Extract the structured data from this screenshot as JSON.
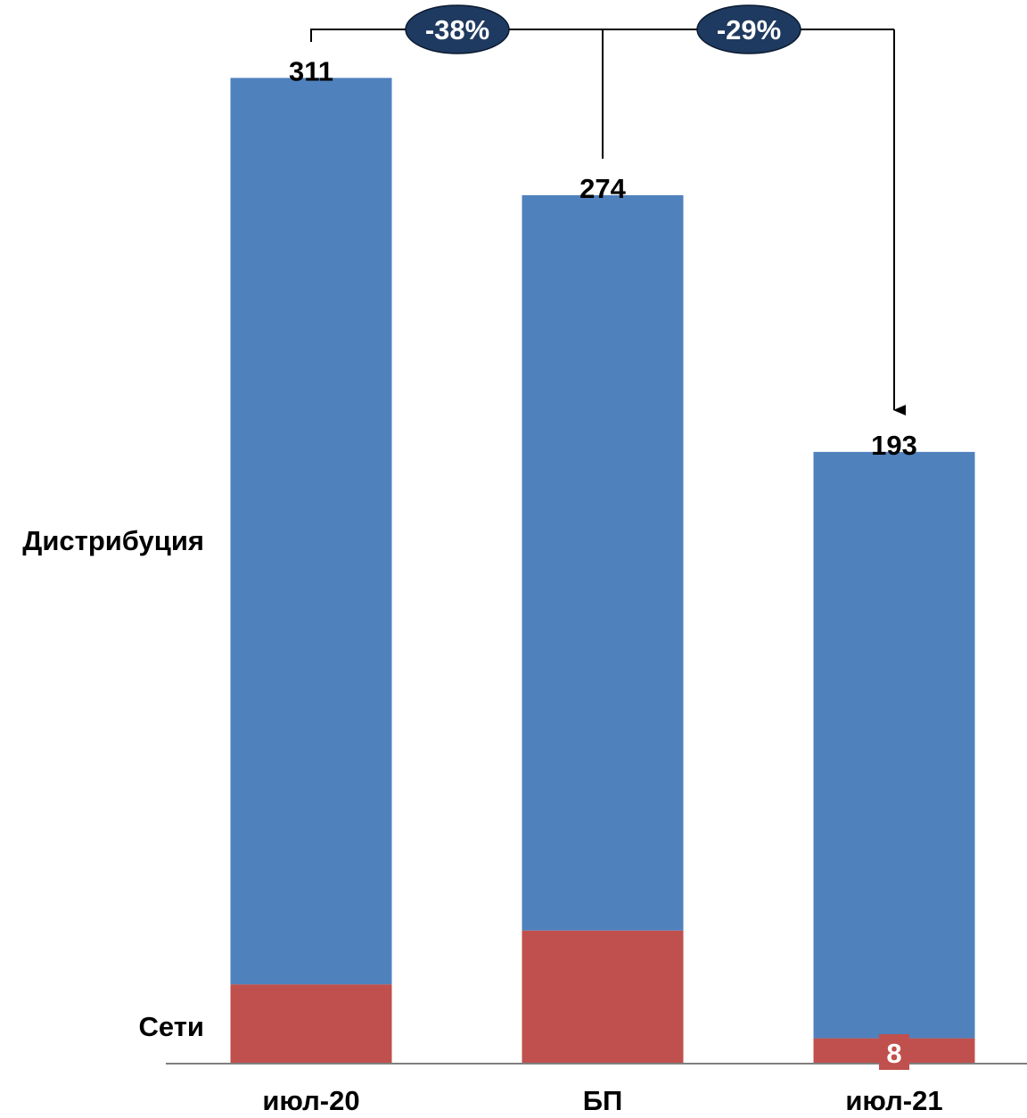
{
  "chart_data": {
    "type": "bar",
    "stacked": true,
    "categories": [
      "июл-20",
      "БП",
      "июл-21"
    ],
    "series": [
      {
        "name": "Сети",
        "values": [
          25,
          42,
          8
        ],
        "color": "#c0504d"
      },
      {
        "name": "Дистрибуция",
        "values": [
          286,
          232,
          185
        ],
        "color": "#4f81bd"
      }
    ],
    "totals": [
      311,
      274,
      193
    ],
    "data_labels": {
      "Сети": [
        "",
        "",
        "8"
      ]
    },
    "annotations": [
      {
        "from": "июл-20",
        "to": "июл-21",
        "text": "-38%"
      },
      {
        "from": "БП",
        "to": "июл-21",
        "text": "-29%"
      }
    ],
    "ylim": [
      0,
      320
    ],
    "grid": false,
    "legend": "inline-left",
    "badge_color": "#1f3a60",
    "axis_color": "#7f7f7f"
  }
}
